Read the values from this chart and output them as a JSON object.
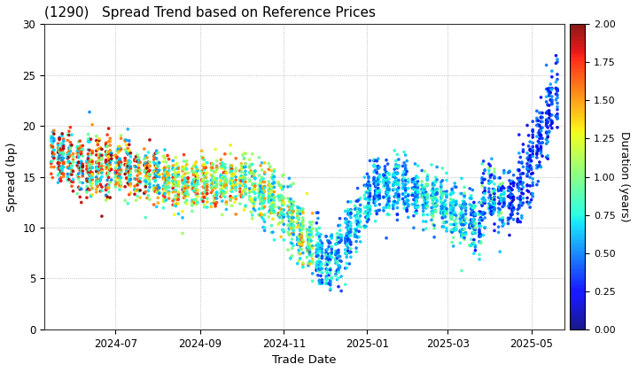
{
  "title": "(1290)   Spread Trend based on Reference Prices",
  "xlabel": "Trade Date",
  "ylabel": "Spread (bp)",
  "colorbar_label": "Duration (years)",
  "ylim": [
    0,
    30
  ],
  "colorbar_min": 0.0,
  "colorbar_max": 2.0,
  "background_color": "#ffffff",
  "grid_color": "#888888",
  "dot_size": 7,
  "yticks": [
    0,
    5,
    10,
    15,
    20,
    25,
    30
  ],
  "xtick_labels": [
    "2024-07",
    "2024-09",
    "2024-11",
    "2025-01",
    "2025-03",
    "2025-05"
  ],
  "date_start": "2024-05-15",
  "date_end": "2025-05-20"
}
